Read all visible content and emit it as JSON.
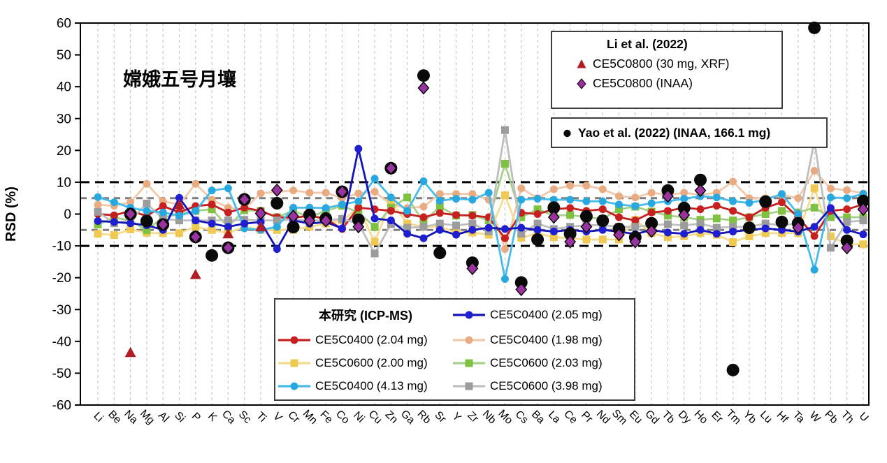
{
  "figure": {
    "annotation": "嫦娥五号月壤",
    "y_axis_label": "RSD (%)"
  },
  "legend_li": {
    "title": "Li et al. (2022)",
    "items": [
      {
        "label": "CE5C0800 (30 mg, XRF)",
        "marker": "triangle",
        "fill": "#B01E24"
      },
      {
        "label": "CE5C0800 (INAA)",
        "marker": "diamond",
        "fill": "#9933A0"
      }
    ]
  },
  "legend_yao": {
    "label": "Yao et al. (2022) (INAA, 166.1 mg)",
    "marker": "circle",
    "fill": "#0a0a0a"
  },
  "legend_main": {
    "title": "本研究 (ICP-MS)"
  },
  "chart_data": {
    "type": "scatter",
    "title": "嫦娥五号月壤",
    "xlabel": "",
    "ylabel": "RSD (%)",
    "ylim": [
      -60,
      60
    ],
    "ytick_step": 10,
    "grid": "vertical-dashed",
    "legend_position": "inside",
    "ref_lines": [
      {
        "value": 10,
        "color": "#000000",
        "style": "dashed"
      },
      {
        "value": 5,
        "color": "#7F7F7F",
        "style": "dashed"
      },
      {
        "value": -5,
        "color": "#7F7F7F",
        "style": "dashed"
      },
      {
        "value": -10,
        "color": "#000000",
        "style": "dashed"
      }
    ],
    "categories": [
      "Li",
      "Be",
      "Na",
      "Mg",
      "Al",
      "Si",
      "P",
      "K",
      "Ca",
      "Sc",
      "Ti",
      "V",
      "Cr",
      "Mn",
      "Fe",
      "Co",
      "Ni",
      "Cu",
      "Zn",
      "Ga",
      "Rb",
      "Sr",
      "Y",
      "Zr",
      "Nb",
      "Mo",
      "Cs",
      "Ba",
      "La",
      "Ce",
      "Pr",
      "Nd",
      "Sm",
      "Eu",
      "Gd",
      "Tb",
      "Dy",
      "Ho",
      "Er",
      "Tm",
      "Yb",
      "Lu",
      "Hf",
      "Ta",
      "W",
      "Pb",
      "Th",
      "U"
    ],
    "series": [
      {
        "name": "CE5C0400 (2.05 mg)",
        "group": "本研究 (ICP-MS)",
        "marker": "circle",
        "connected": true,
        "fill": "#1F1FD1",
        "line": "#1414B8",
        "values": [
          -2.2,
          -2.5,
          -2.9,
          -3.5,
          -5,
          5.1,
          -2,
          -3,
          -4,
          -3,
          -2.5,
          -11,
          -2,
          -3,
          -2.5,
          -4.5,
          20.5,
          -1.4,
          -2,
          -6.2,
          -7.6,
          -5,
          -6.5,
          -5,
          -4.3,
          -4.7,
          -4.3,
          -5,
          -5.5,
          -5,
          -5.5,
          -5,
          -5.5,
          -6.3,
          -5,
          -5.8,
          -6.2,
          -5,
          -6.2,
          -5.5,
          -5,
          -4.5,
          -5,
          -5.5,
          -4,
          1.9,
          -5,
          -6.4
        ]
      },
      {
        "name": "CE5C0400 (2.04 mg)",
        "group": "本研究 (ICP-MS)",
        "marker": "circle",
        "connected": true,
        "fill": "#C62020",
        "line": "#C62020",
        "values": [
          0,
          -0.4,
          1,
          -0.6,
          2.5,
          0.5,
          2.5,
          3,
          0.5,
          2,
          1,
          -1,
          -1.2,
          -0.5,
          -1.5,
          -4.7,
          2,
          1.5,
          1,
          0,
          -1,
          0.3,
          -0.3,
          -0.5,
          -1,
          -7.6,
          0.4,
          0,
          1.5,
          1.9,
          1,
          1.5,
          -1,
          -2,
          0.5,
          1,
          2,
          1.5,
          2.6,
          1,
          -1,
          2,
          3.7,
          -1,
          -6.9,
          1,
          1.5,
          3
        ]
      },
      {
        "name": "CE5C0400 (1.98 mg)",
        "group": "本研究 (ICP-MS)",
        "marker": "circle",
        "connected": true,
        "fill": "#E9AC82",
        "line": "#F0C9AC",
        "values": [
          2.9,
          2.6,
          3.7,
          9.5,
          4,
          3,
          9.5,
          4.5,
          2,
          1.5,
          6.5,
          7,
          7.4,
          6.7,
          6.7,
          5,
          6.5,
          7,
          3,
          1.9,
          2.3,
          6.3,
          6.3,
          6.3,
          4.5,
          -11,
          8.1,
          5,
          7.8,
          8.9,
          8.9,
          7.8,
          5.6,
          5.2,
          6.7,
          6,
          6.7,
          6,
          6.7,
          10.2,
          5,
          5,
          6,
          5,
          13.6,
          8,
          7.5,
          6.5
        ]
      },
      {
        "name": "CE5C0600 (2.00 mg)",
        "group": "本研究 (ICP-MS)",
        "marker": "square",
        "connected": true,
        "fill": "#EFC951",
        "line": "#F5DC8F",
        "values": [
          -6.2,
          -6.6,
          -4.8,
          -5.9,
          -6,
          -6,
          -4,
          -5,
          -6,
          -4,
          -5,
          -5,
          -5,
          -4,
          -3,
          -2,
          1.9,
          -8.7,
          4.1,
          -3,
          -4,
          -4,
          -5.8,
          -5.8,
          -6.5,
          5.9,
          -7.5,
          -6,
          -7.3,
          -7.6,
          -8,
          -8,
          -8,
          -1.8,
          -6,
          -7.3,
          -7,
          -6,
          -6.5,
          -8.8,
          -7,
          -6,
          -6,
          -6,
          8.1,
          -7,
          -9.5,
          -9.5
        ]
      },
      {
        "name": "CE5C0600 (2.03 mg)",
        "group": "本研究 (ICP-MS)",
        "marker": "square",
        "connected": true,
        "fill": "#7FC241",
        "line": "#A8D08D",
        "values": [
          -3.3,
          -1.1,
          -2,
          -5.1,
          -1,
          0,
          1,
          1.5,
          -4,
          1.2,
          1,
          -1,
          1,
          -1,
          1,
          2.6,
          0.5,
          -4,
          2,
          5.2,
          -2.5,
          2.3,
          -0.5,
          -0.3,
          -2,
          15.8,
          -1,
          1.5,
          -0.5,
          -0.3,
          -1,
          -1.5,
          1.5,
          2.3,
          0.8,
          -0.5,
          -1,
          -1.8,
          -1.4,
          -2,
          -1,
          0,
          1,
          0.5,
          2,
          -1,
          -1,
          -1
        ]
      },
      {
        "name": "CE5C0400 (4.13 mg)",
        "group": "本研究 (ICP-MS)",
        "marker": "circle",
        "connected": true,
        "fill": "#29A8E0",
        "line": "#45BCEC",
        "values": [
          5.3,
          3.7,
          2,
          1,
          0.5,
          -0.5,
          1,
          7.4,
          8.1,
          -4.5,
          -5,
          -4,
          2,
          2,
          1.9,
          3,
          4,
          11.1,
          5.2,
          1,
          10.3,
          4.2,
          4.8,
          4.5,
          6.7,
          -20.4,
          4.5,
          4.8,
          4.5,
          4.5,
          4,
          4,
          3,
          2.5,
          3.4,
          4,
          4.8,
          5.6,
          5.2,
          4,
          3.5,
          4.5,
          6.3,
          0,
          -17.5,
          5.2,
          5,
          6.3
        ]
      },
      {
        "name": "CE5C0600 (3.98 mg)",
        "group": "本研究 (ICP-MS)",
        "marker": "square",
        "connected": true,
        "fill": "#9C9C9C",
        "line": "#BFBFBF",
        "values": [
          0.7,
          -2.9,
          -2,
          3.3,
          -1.5,
          -2,
          -2,
          -2,
          -2,
          -1.8,
          -2,
          -2,
          -1.8,
          -2,
          -2,
          -1.5,
          -3,
          -12.4,
          -3.2,
          -4.3,
          -4,
          -3,
          -3.6,
          -3,
          -5.4,
          26.4,
          -6.2,
          -3,
          -4.7,
          -4,
          -3.5,
          -3.5,
          -4,
          -4,
          -3.5,
          -3.2,
          -3.6,
          -3,
          -4.3,
          -4,
          -4,
          -3,
          -3.5,
          -3,
          22.9,
          -10.6,
          -2.5,
          -2
        ]
      },
      {
        "name": "CE5C0800 (30 mg, XRF)",
        "group": "Li et al. (2022)",
        "marker": "triangle",
        "connected": false,
        "fill": "#B01E24",
        "line": "#B01E24",
        "values": [
          null,
          null,
          -43.5,
          null,
          null,
          2.9,
          -19,
          null,
          -6.2,
          null,
          -4,
          null,
          null,
          null,
          null,
          null,
          null,
          null,
          null,
          null,
          null,
          null,
          null,
          null,
          null,
          null,
          null,
          null,
          null,
          null,
          null,
          null,
          null,
          null,
          null,
          null,
          null,
          null,
          null,
          null,
          null,
          null,
          null,
          null,
          null,
          null,
          null,
          null
        ]
      },
      {
        "name": "CE5C0800 (INAA)",
        "group": "Li et al. (2022)",
        "marker": "diamond",
        "connected": false,
        "fill": "#9933A0",
        "line": "#000000",
        "values": [
          null,
          null,
          0,
          null,
          -3.3,
          null,
          -7.2,
          null,
          -10.6,
          4.6,
          0.2,
          7.5,
          -0.7,
          -2.1,
          -2.1,
          7,
          -4,
          null,
          14.4,
          null,
          39.6,
          null,
          null,
          -17.1,
          null,
          null,
          -23.7,
          null,
          -1,
          -8.7,
          -4,
          null,
          -6.5,
          -8.7,
          -5.4,
          5.6,
          -0.3,
          7.4,
          null,
          null,
          null,
          null,
          null,
          -4.3,
          null,
          null,
          -10.6,
          1.5
        ]
      },
      {
        "name": "Yao et al. (2022) (INAA, 166.1 mg)",
        "group": "Yao et al. (2022)",
        "marker": "circle-large",
        "connected": false,
        "fill": "#0a0a0a",
        "line": "#0a0a0a",
        "values": [
          null,
          null,
          0,
          -2.2,
          -3.3,
          null,
          -7.2,
          -13,
          -10.6,
          4.6,
          null,
          3.4,
          -4.1,
          -0.3,
          -1.4,
          7,
          -1.8,
          null,
          14.4,
          null,
          43.5,
          -12.2,
          null,
          -15.3,
          null,
          null,
          -21.5,
          -8,
          2,
          -6.2,
          -0.7,
          -2.1,
          -4.7,
          -7.3,
          -2.9,
          7.4,
          1.9,
          10.7,
          null,
          -49,
          -4.3,
          3.9,
          -2.5,
          -2.9,
          58.5,
          null,
          -8.4,
          4.1
        ]
      }
    ]
  }
}
